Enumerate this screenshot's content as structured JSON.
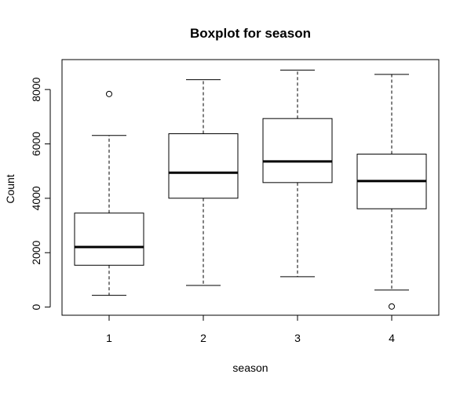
{
  "chart_data": {
    "type": "boxplot",
    "title": "Boxplot for season",
    "xlabel": "season",
    "ylabel": "Count",
    "categories": [
      "1",
      "2",
      "3",
      "4"
    ],
    "yticks": [
      0,
      2000,
      4000,
      6000,
      8000
    ],
    "ylim": [
      -300,
      9100
    ],
    "grid": false,
    "boxes": [
      {
        "category": "1",
        "whisker_low": 431,
        "q1": 1538,
        "median": 2209,
        "q3": 3456,
        "whisker_high": 6310,
        "outliers": [
          7836
        ]
      },
      {
        "category": "2",
        "whisker_low": 795,
        "q1": 4003,
        "median": 4942,
        "q3": 6374,
        "whisker_high": 8362,
        "outliers": []
      },
      {
        "category": "3",
        "whisker_low": 1115,
        "q1": 4578,
        "median": 5354,
        "q3": 6932,
        "whisker_high": 8714,
        "outliers": []
      },
      {
        "category": "4",
        "whisker_low": 627,
        "q1": 3615,
        "median": 4634,
        "q3": 5624,
        "whisker_high": 8555,
        "outliers": [
          22
        ]
      }
    ],
    "colors": {
      "line": "#000000",
      "box_fill": "#ffffff"
    }
  }
}
